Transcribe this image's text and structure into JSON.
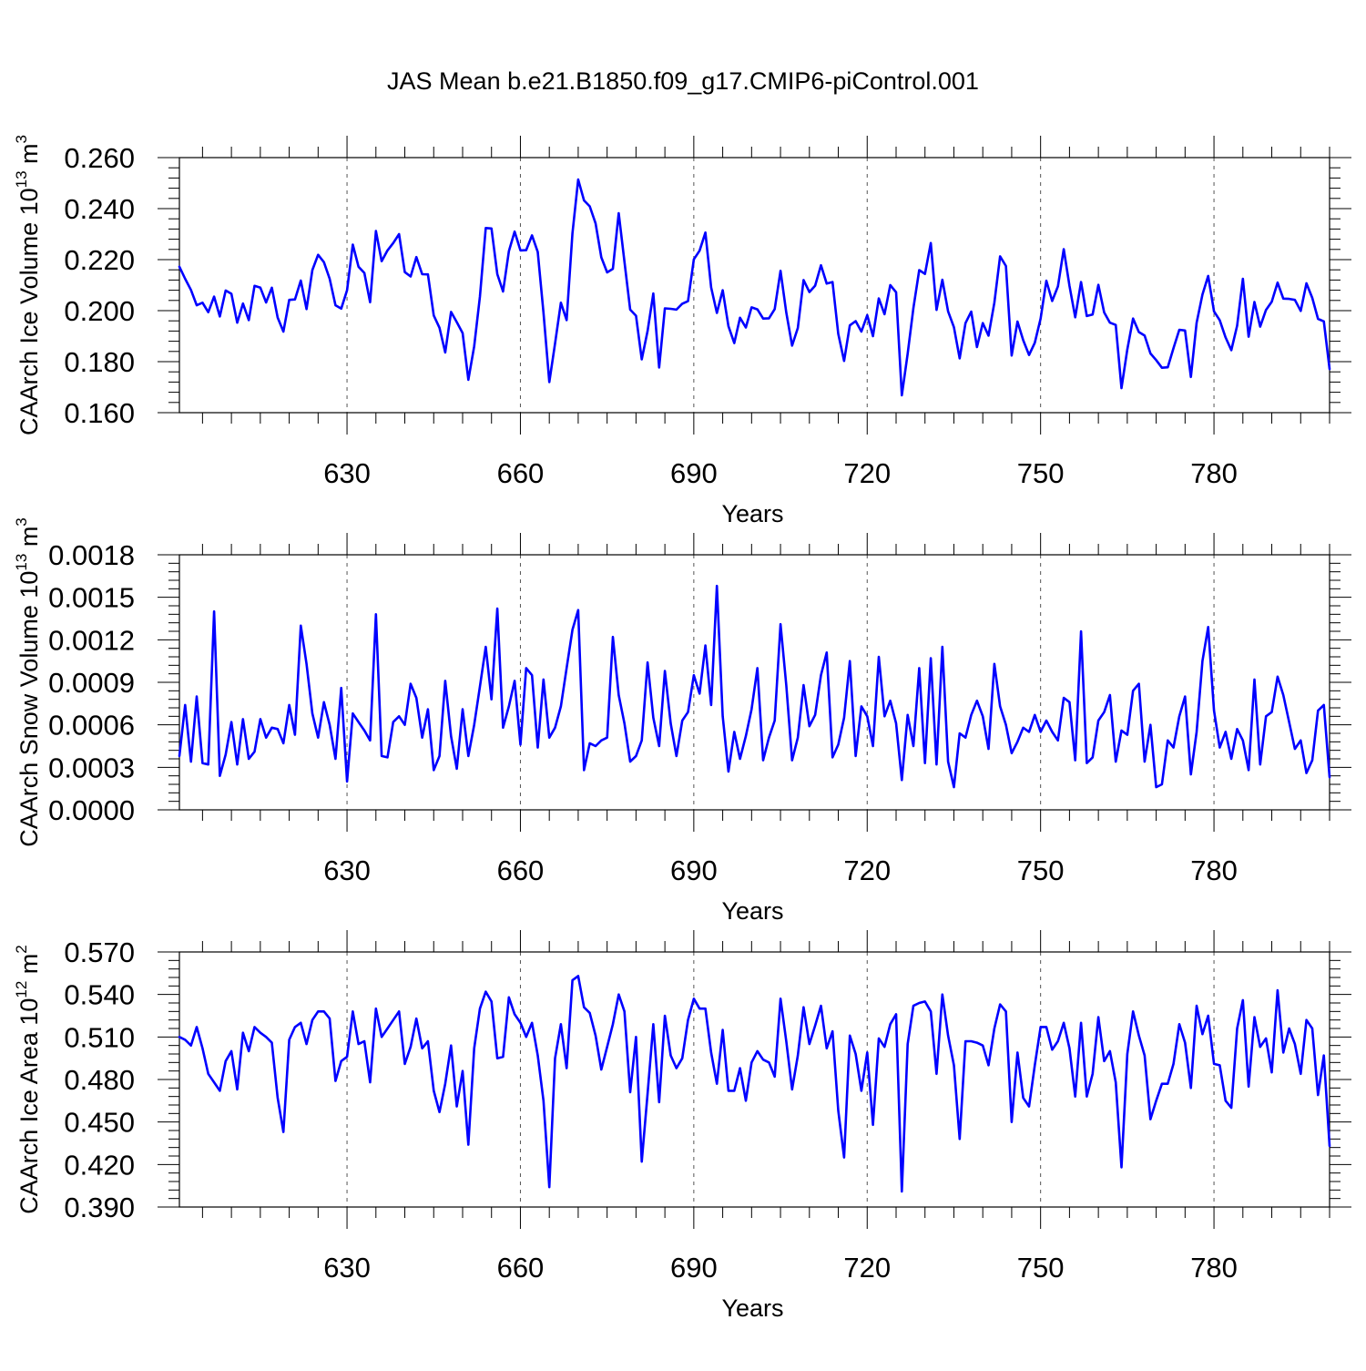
{
  "title": "JAS Mean b.e21.B1850.f09_g17.CMIP6-piControl.001",
  "colors": {
    "line": "#0000ff",
    "axis": "#000000",
    "grid": "#555555"
  },
  "chart_data": [
    {
      "type": "line",
      "ylabel": "CAArch Ice Volume 10",
      "ylabel_exp": "13",
      "ylabel_unit": " m",
      "ylabel_unit_exp": "3",
      "xlabel": "Years",
      "xlim": [
        601,
        800
      ],
      "ylim": [
        0.16,
        0.26
      ],
      "yticks": [
        0.16,
        0.18,
        0.2,
        0.22,
        0.24,
        0.26
      ],
      "ytick_labels": [
        "0.160",
        "0.180",
        "0.200",
        "0.220",
        "0.240",
        "0.260"
      ],
      "xticks": [
        630,
        660,
        690,
        720,
        750,
        780
      ],
      "xtick_labels": [
        "630",
        "660",
        "690",
        "720",
        "750",
        "780"
      ],
      "x_start": 601,
      "x_step": 1,
      "grid": "vertical dashed at major x ticks",
      "series": [
        {
          "values": [
            0.2172,
            0.2125,
            0.2081,
            0.2021,
            0.2031,
            0.1994,
            0.2055,
            0.1977,
            0.2079,
            0.2066,
            0.1953,
            0.2028,
            0.1963,
            0.2097,
            0.209,
            0.2032,
            0.209,
            0.1973,
            0.1918,
            0.2042,
            0.2044,
            0.2118,
            0.2006,
            0.2159,
            0.2219,
            0.219,
            0.2125,
            0.2021,
            0.2008,
            0.208,
            0.2259,
            0.2172,
            0.2148,
            0.2033,
            0.2312,
            0.2194,
            0.2236,
            0.2265,
            0.23,
            0.2151,
            0.2134,
            0.221,
            0.2143,
            0.2142,
            0.1981,
            0.1933,
            0.1836,
            0.1995,
            0.1955,
            0.1912,
            0.1729,
            0.186,
            0.2055,
            0.2324,
            0.2322,
            0.2143,
            0.2075,
            0.2233,
            0.231,
            0.2236,
            0.2237,
            0.2295,
            0.223,
            0.1992,
            0.172,
            0.1871,
            0.2031,
            0.1963,
            0.2303,
            0.2514,
            0.2432,
            0.2409,
            0.2342,
            0.2209,
            0.215,
            0.2164,
            0.2382,
            0.2192,
            0.2004,
            0.198,
            0.1809,
            0.192,
            0.2067,
            0.1777,
            0.2009,
            0.2007,
            0.2004,
            0.2027,
            0.2037,
            0.2201,
            0.2235,
            0.2306,
            0.2091,
            0.1991,
            0.208,
            0.1939,
            0.1873,
            0.1972,
            0.1934,
            0.2013,
            0.2005,
            0.1969,
            0.197,
            0.2006,
            0.2156,
            0.1993,
            0.1863,
            0.1932,
            0.212,
            0.2073,
            0.2098,
            0.2178,
            0.2106,
            0.2112,
            0.1909,
            0.1803,
            0.1942,
            0.1959,
            0.1918,
            0.1982,
            0.19,
            0.2048,
            0.1986,
            0.21,
            0.2072,
            0.1668,
            0.1831,
            0.201,
            0.2159,
            0.2144,
            0.2265,
            0.2003,
            0.2121,
            0.1997,
            0.1935,
            0.1813,
            0.1951,
            0.1996,
            0.1857,
            0.1951,
            0.1902,
            0.2031,
            0.2213,
            0.2175,
            0.1824,
            0.1957,
            0.1884,
            0.1826,
            0.1874,
            0.1969,
            0.2117,
            0.2038,
            0.2095,
            0.2241,
            0.2097,
            0.1974,
            0.2112,
            0.1979,
            0.1985,
            0.2101,
            0.1993,
            0.1953,
            0.1944,
            0.1696,
            0.1848,
            0.1969,
            0.1916,
            0.1902,
            0.1832,
            0.1806,
            0.1776,
            0.1778,
            0.1853,
            0.1925,
            0.1922,
            0.174,
            0.1952,
            0.2063,
            0.2136,
            0.1997,
            0.1962,
            0.1895,
            0.1845,
            0.1941,
            0.2125,
            0.1898,
            0.2034,
            0.1937,
            0.2003,
            0.2035,
            0.211,
            0.2047,
            0.2046,
            0.2042,
            0.1999,
            0.2107,
            0.205,
            0.1968,
            0.1958,
            0.1771
          ]
        }
      ]
    },
    {
      "type": "line",
      "ylabel": "CAArch Snow Volume 10",
      "ylabel_exp": "13",
      "ylabel_unit": " m",
      "ylabel_unit_exp": "3",
      "xlabel": "Years",
      "xlim": [
        601,
        800
      ],
      "ylim": [
        0,
        0.0018
      ],
      "yticks": [
        0,
        0.0003,
        0.0006,
        0.0009,
        0.0012,
        0.0015,
        0.0018
      ],
      "ytick_labels": [
        "0.0000",
        "0.0003",
        "0.0006",
        "0.0009",
        "0.0012",
        "0.0015",
        "0.0018"
      ],
      "xticks": [
        630,
        660,
        690,
        720,
        750,
        780
      ],
      "xtick_labels": [
        "630",
        "660",
        "690",
        "720",
        "750",
        "780"
      ],
      "x_start": 601,
      "x_step": 1,
      "grid": "vertical dashed at major x ticks",
      "series": [
        {
          "values": [
            0.00038,
            0.00074,
            0.00034,
            0.0008,
            0.00033,
            0.00032,
            0.0014,
            0.00024,
            0.00039,
            0.00062,
            0.00032,
            0.00064,
            0.00036,
            0.00041,
            0.00064,
            0.00051,
            0.00058,
            0.00057,
            0.00047,
            0.00074,
            0.00053,
            0.0013,
            0.00103,
            0.00068,
            0.00051,
            0.00076,
            0.0006,
            0.00036,
            0.00086,
            0.0002,
            0.00068,
            0.00062,
            0.00056,
            0.00049,
            0.00138,
            0.00038,
            0.00037,
            0.00062,
            0.00066,
            0.0006,
            0.00089,
            0.00079,
            0.00051,
            0.00071,
            0.00028,
            0.00038,
            0.00091,
            0.00052,
            0.00029,
            0.00071,
            0.00038,
            0.0006,
            0.00087,
            0.00115,
            0.00078,
            0.00142,
            0.00058,
            0.00073,
            0.00091,
            0.00046,
            0.001,
            0.00095,
            0.00044,
            0.00092,
            0.00051,
            0.00058,
            0.00073,
            0.001,
            0.00127,
            0.00141,
            0.00028,
            0.00047,
            0.00045,
            0.00049,
            0.00051,
            0.00122,
            0.00081,
            0.00061,
            0.00034,
            0.00038,
            0.00049,
            0.00104,
            0.00065,
            0.00045,
            0.00098,
            0.00061,
            0.00038,
            0.00063,
            0.00069,
            0.00095,
            0.00082,
            0.00116,
            0.00074,
            0.00158,
            0.00066,
            0.00027,
            0.00055,
            0.00036,
            0.00052,
            0.00071,
            0.001,
            0.00035,
            0.00051,
            0.00063,
            0.00131,
            0.00088,
            0.00035,
            0.00051,
            0.00088,
            0.00059,
            0.00067,
            0.00095,
            0.00111,
            0.00037,
            0.00046,
            0.00065,
            0.00105,
            0.00038,
            0.00073,
            0.00066,
            0.00045,
            0.00108,
            0.00066,
            0.00077,
            0.00061,
            0.00021,
            0.00067,
            0.00045,
            0.001,
            0.00033,
            0.00107,
            0.00032,
            0.00115,
            0.00034,
            0.00016,
            0.00054,
            0.00051,
            0.00067,
            0.00077,
            0.00066,
            0.00043,
            0.00103,
            0.00073,
            0.0006,
            0.0004,
            0.00048,
            0.00058,
            0.00055,
            0.00067,
            0.00055,
            0.00063,
            0.00055,
            0.00049,
            0.00079,
            0.00076,
            0.00035,
            0.00126,
            0.00033,
            0.00037,
            0.00063,
            0.00069,
            0.00081,
            0.00034,
            0.00056,
            0.00053,
            0.00084,
            0.00089,
            0.00034,
            0.0006,
            0.00016,
            0.00018,
            0.00049,
            0.00044,
            0.00066,
            0.0008,
            0.00025,
            0.00055,
            0.00105,
            0.00129,
            0.0007,
            0.00044,
            0.00055,
            0.00036,
            0.00057,
            0.00049,
            0.00028,
            0.00092,
            0.00032,
            0.00066,
            0.00069,
            0.00094,
            0.00081,
            0.00062,
            0.00043,
            0.00049,
            0.00026,
            0.00035,
            0.0007,
            0.00074,
            0.00023
          ]
        }
      ]
    },
    {
      "type": "line",
      "ylabel": "CAArch Ice Area 10",
      "ylabel_exp": "12",
      "ylabel_unit": " m",
      "ylabel_unit_exp": "2",
      "xlabel": "Years",
      "xlim": [
        601,
        800
      ],
      "ylim": [
        0.39,
        0.57
      ],
      "yticks": [
        0.39,
        0.42,
        0.45,
        0.48,
        0.51,
        0.54,
        0.57
      ],
      "ytick_labels": [
        "0.390",
        "0.420",
        "0.450",
        "0.480",
        "0.510",
        "0.540",
        "0.570"
      ],
      "xticks": [
        630,
        660,
        690,
        720,
        750,
        780
      ],
      "xtick_labels": [
        "630",
        "660",
        "690",
        "720",
        "750",
        "780"
      ],
      "x_start": 601,
      "x_step": 1,
      "grid": "vertical dashed at major x ticks",
      "series": [
        {
          "values": [
            0.51,
            0.508,
            0.504,
            0.517,
            0.502,
            0.484,
            0.478,
            0.472,
            0.493,
            0.5,
            0.473,
            0.513,
            0.5,
            0.517,
            0.513,
            0.51,
            0.506,
            0.467,
            0.443,
            0.508,
            0.517,
            0.52,
            0.505,
            0.522,
            0.528,
            0.528,
            0.523,
            0.479,
            0.493,
            0.496,
            0.528,
            0.505,
            0.507,
            0.478,
            0.53,
            0.51,
            0.516,
            0.522,
            0.528,
            0.491,
            0.503,
            0.523,
            0.502,
            0.507,
            0.472,
            0.457,
            0.477,
            0.504,
            0.461,
            0.486,
            0.434,
            0.502,
            0.53,
            0.542,
            0.535,
            0.495,
            0.496,
            0.538,
            0.526,
            0.52,
            0.51,
            0.52,
            0.497,
            0.465,
            0.404,
            0.495,
            0.519,
            0.488,
            0.55,
            0.553,
            0.531,
            0.527,
            0.511,
            0.487,
            0.503,
            0.519,
            0.54,
            0.528,
            0.471,
            0.51,
            0.422,
            0.47,
            0.519,
            0.464,
            0.525,
            0.497,
            0.488,
            0.495,
            0.522,
            0.537,
            0.53,
            0.53,
            0.499,
            0.477,
            0.515,
            0.472,
            0.472,
            0.488,
            0.465,
            0.492,
            0.5,
            0.494,
            0.492,
            0.482,
            0.537,
            0.507,
            0.473,
            0.497,
            0.531,
            0.505,
            0.518,
            0.532,
            0.502,
            0.514,
            0.458,
            0.425,
            0.511,
            0.498,
            0.472,
            0.499,
            0.448,
            0.509,
            0.503,
            0.519,
            0.526,
            0.401,
            0.505,
            0.532,
            0.534,
            0.535,
            0.528,
            0.484,
            0.54,
            0.511,
            0.49,
            0.438,
            0.507,
            0.507,
            0.506,
            0.504,
            0.49,
            0.516,
            0.533,
            0.528,
            0.45,
            0.499,
            0.467,
            0.461,
            0.49,
            0.517,
            0.517,
            0.501,
            0.507,
            0.52,
            0.502,
            0.468,
            0.52,
            0.468,
            0.484,
            0.524,
            0.493,
            0.5,
            0.478,
            0.418,
            0.498,
            0.528,
            0.511,
            0.497,
            0.452,
            0.465,
            0.477,
            0.477,
            0.491,
            0.519,
            0.506,
            0.474,
            0.532,
            0.512,
            0.525,
            0.491,
            0.49,
            0.465,
            0.46,
            0.516,
            0.536,
            0.475,
            0.524,
            0.503,
            0.509,
            0.485,
            0.543,
            0.499,
            0.516,
            0.505,
            0.484,
            0.522,
            0.516,
            0.469,
            0.497,
            0.433
          ]
        }
      ]
    }
  ]
}
